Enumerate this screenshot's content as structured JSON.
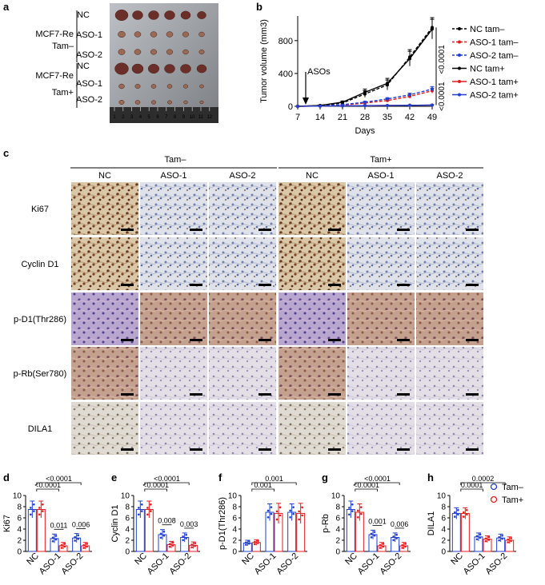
{
  "panels": {
    "a": {
      "letter": "a",
      "group_top": "MCF7-Re",
      "group_top_sub": "Tam–",
      "group_bottom": "MCF7-Re",
      "group_bottom_sub": "Tam+",
      "rows": [
        "NC",
        "ASO-1",
        "ASO-2",
        "NC",
        "ASO-1",
        "ASO-2"
      ],
      "ruler_ticks": [
        "1",
        "2",
        "3",
        "4",
        "5",
        "6",
        "7",
        "8",
        "9",
        "10",
        "11",
        "12"
      ]
    },
    "b": {
      "letter": "b",
      "annotation": "ASOs",
      "pvalues": [
        "<0.0001",
        "<0.0001"
      ]
    },
    "c": {
      "letter": "c",
      "groups": [
        "Tam–",
        "Tam+"
      ],
      "columns": [
        "NC",
        "ASO-1",
        "ASO-2",
        "NC",
        "ASO-1",
        "ASO-2"
      ],
      "rows": [
        "Ki67",
        "Cyclin D1",
        "p-D1(Thr286)",
        "p-Rb(Ser780)",
        "DILA1"
      ]
    },
    "legend_bottom": [
      "Tam–",
      "Tam+"
    ]
  },
  "colors": {
    "black": "#000000",
    "red": "#e41a1c",
    "blue": "#1f3fd1",
    "tam_minus": "#1f3fd1",
    "tam_plus": "#e41a1c"
  },
  "chart_data": [
    {
      "id": "b",
      "type": "line",
      "xlabel": "Days",
      "ylabel": "Tumor volume (mm3)",
      "x": [
        7,
        14,
        21,
        28,
        35,
        42,
        49
      ],
      "xticks": [
        "7",
        "14",
        "21",
        "28",
        "35",
        "42",
        "49"
      ],
      "yticks": [
        "0",
        "400",
        "800"
      ],
      "ylim": [
        0,
        1100
      ],
      "xlim": [
        7,
        49
      ],
      "series": [
        {
          "name": "NC tam–",
          "color": "#000000",
          "dash": true,
          "values": [
            0,
            10,
            40,
            150,
            260,
            600,
            960
          ],
          "err": [
            0,
            5,
            15,
            40,
            60,
            90,
            120
          ]
        },
        {
          "name": "ASO-1 tam–",
          "color": "#e41a1c",
          "dash": true,
          "values": [
            0,
            5,
            15,
            40,
            70,
            120,
            190
          ],
          "err": [
            0,
            3,
            5,
            10,
            15,
            20,
            30
          ]
        },
        {
          "name": "ASO-2 tam–",
          "color": "#1f3fd1",
          "dash": true,
          "values": [
            0,
            5,
            20,
            50,
            90,
            140,
            210
          ],
          "err": [
            0,
            3,
            5,
            10,
            15,
            20,
            30
          ]
        },
        {
          "name": "NC tam+",
          "color": "#000000",
          "dash": false,
          "values": [
            0,
            10,
            50,
            170,
            280,
            580,
            940
          ],
          "err": [
            0,
            5,
            15,
            40,
            60,
            90,
            120
          ]
        },
        {
          "name": "ASO-1 tam+",
          "color": "#e41a1c",
          "dash": false,
          "values": [
            0,
            3,
            5,
            8,
            10,
            12,
            15
          ],
          "err": [
            0,
            2,
            2,
            3,
            3,
            4,
            5
          ]
        },
        {
          "name": "ASO-2 tam+",
          "color": "#1f3fd1",
          "dash": false,
          "values": [
            0,
            3,
            5,
            8,
            10,
            12,
            15
          ],
          "err": [
            0,
            2,
            2,
            3,
            3,
            4,
            5
          ]
        }
      ]
    },
    {
      "id": "d",
      "type": "bar",
      "ylabel": "Ki67",
      "ylim": [
        0,
        10
      ],
      "yticks": [
        "0",
        "2",
        "4",
        "6",
        "8",
        "10"
      ],
      "categories": [
        "NC",
        "ASO-1",
        "ASO-2"
      ],
      "series": [
        {
          "name": "Tam–",
          "values": [
            7.5,
            2.3,
            2.4
          ],
          "err": [
            1.5,
            0.8,
            0.8
          ]
        },
        {
          "name": "Tam+",
          "values": [
            7.5,
            1.0,
            1.0
          ],
          "err": [
            1.5,
            0.6,
            0.6
          ]
        }
      ],
      "brackets": [
        {
          "label": "<0.0001",
          "from": 0,
          "to": 2,
          "level": 0
        },
        {
          "label": "<0.0001",
          "from": 0,
          "to": 1,
          "level": 1
        },
        {
          "label": "0.011",
          "from": 1,
          "to": 1,
          "level": 2
        },
        {
          "label": "0.006",
          "from": 2,
          "to": 2,
          "level": 2
        }
      ]
    },
    {
      "id": "e",
      "type": "bar",
      "ylabel": "Cyclin D1",
      "ylim": [
        0,
        10
      ],
      "yticks": [
        "0",
        "2",
        "4",
        "6",
        "8",
        "10"
      ],
      "categories": [
        "NC",
        "ASO-1",
        "ASO-2"
      ],
      "series": [
        {
          "name": "Tam–",
          "values": [
            7.5,
            3.0,
            2.5
          ],
          "err": [
            1.5,
            0.9,
            0.8
          ]
        },
        {
          "name": "Tam+",
          "values": [
            7.5,
            1.2,
            1.1
          ],
          "err": [
            1.5,
            0.6,
            0.6
          ]
        }
      ],
      "brackets": [
        {
          "label": "<0.0001",
          "from": 0,
          "to": 2,
          "level": 0
        },
        {
          "label": "<0.0001",
          "from": 0,
          "to": 1,
          "level": 1
        },
        {
          "label": "0.008",
          "from": 1,
          "to": 1,
          "level": 2
        },
        {
          "label": "0.003",
          "from": 2,
          "to": 2,
          "level": 2
        }
      ]
    },
    {
      "id": "f",
      "type": "bar",
      "ylabel": "p-D1(Thr286)",
      "ylim": [
        0,
        10
      ],
      "yticks": [
        "0",
        "2",
        "4",
        "6",
        "8",
        "10"
      ],
      "categories": [
        "NC",
        "ASO-1",
        "ASO-2"
      ],
      "series": [
        {
          "name": "Tam–",
          "values": [
            1.5,
            7.0,
            7.0
          ],
          "err": [
            0.5,
            1.5,
            1.5
          ]
        },
        {
          "name": "Tam+",
          "values": [
            1.6,
            6.8,
            6.8
          ],
          "err": [
            0.5,
            1.8,
            1.8
          ]
        }
      ],
      "brackets": [
        {
          "label": "0.001",
          "from": 0,
          "to": 2,
          "level": 0
        },
        {
          "label": "0.001",
          "from": 0,
          "to": 1,
          "level": 1
        }
      ]
    },
    {
      "id": "g",
      "type": "bar",
      "ylabel": "p-Rb",
      "ylim": [
        0,
        10
      ],
      "yticks": [
        "0",
        "2",
        "4",
        "6",
        "8",
        "10"
      ],
      "categories": [
        "NC",
        "ASO-1",
        "ASO-2"
      ],
      "series": [
        {
          "name": "Tam–",
          "values": [
            7.5,
            3.0,
            2.5
          ],
          "err": [
            1.5,
            0.8,
            0.8
          ]
        },
        {
          "name": "Tam+",
          "values": [
            7.0,
            1.0,
            1.0
          ],
          "err": [
            1.5,
            0.6,
            0.6
          ]
        }
      ],
      "brackets": [
        {
          "label": "<0.0001",
          "from": 0,
          "to": 2,
          "level": 0
        },
        {
          "label": "<0.0001",
          "from": 0,
          "to": 1,
          "level": 1
        },
        {
          "label": "0.001",
          "from": 1,
          "to": 1,
          "level": 2
        },
        {
          "label": "0.006",
          "from": 2,
          "to": 2,
          "level": 2
        }
      ]
    },
    {
      "id": "h",
      "type": "bar",
      "ylabel": "DILA1",
      "ylim": [
        0,
        10
      ],
      "yticks": [
        "0",
        "2",
        "4",
        "6",
        "8",
        "10"
      ],
      "categories": [
        "NC",
        "ASO-1",
        "ASO-2"
      ],
      "series": [
        {
          "name": "Tam–",
          "values": [
            6.8,
            2.6,
            2.4
          ],
          "err": [
            1.0,
            0.7,
            0.7
          ]
        },
        {
          "name": "Tam+",
          "values": [
            6.8,
            2.2,
            2.0
          ],
          "err": [
            1.0,
            0.6,
            0.6
          ]
        }
      ],
      "brackets": [
        {
          "label": "0.0002",
          "from": 0,
          "to": 2,
          "level": 0
        },
        {
          "label": "0.0001",
          "from": 0,
          "to": 1,
          "level": 1
        }
      ]
    }
  ]
}
